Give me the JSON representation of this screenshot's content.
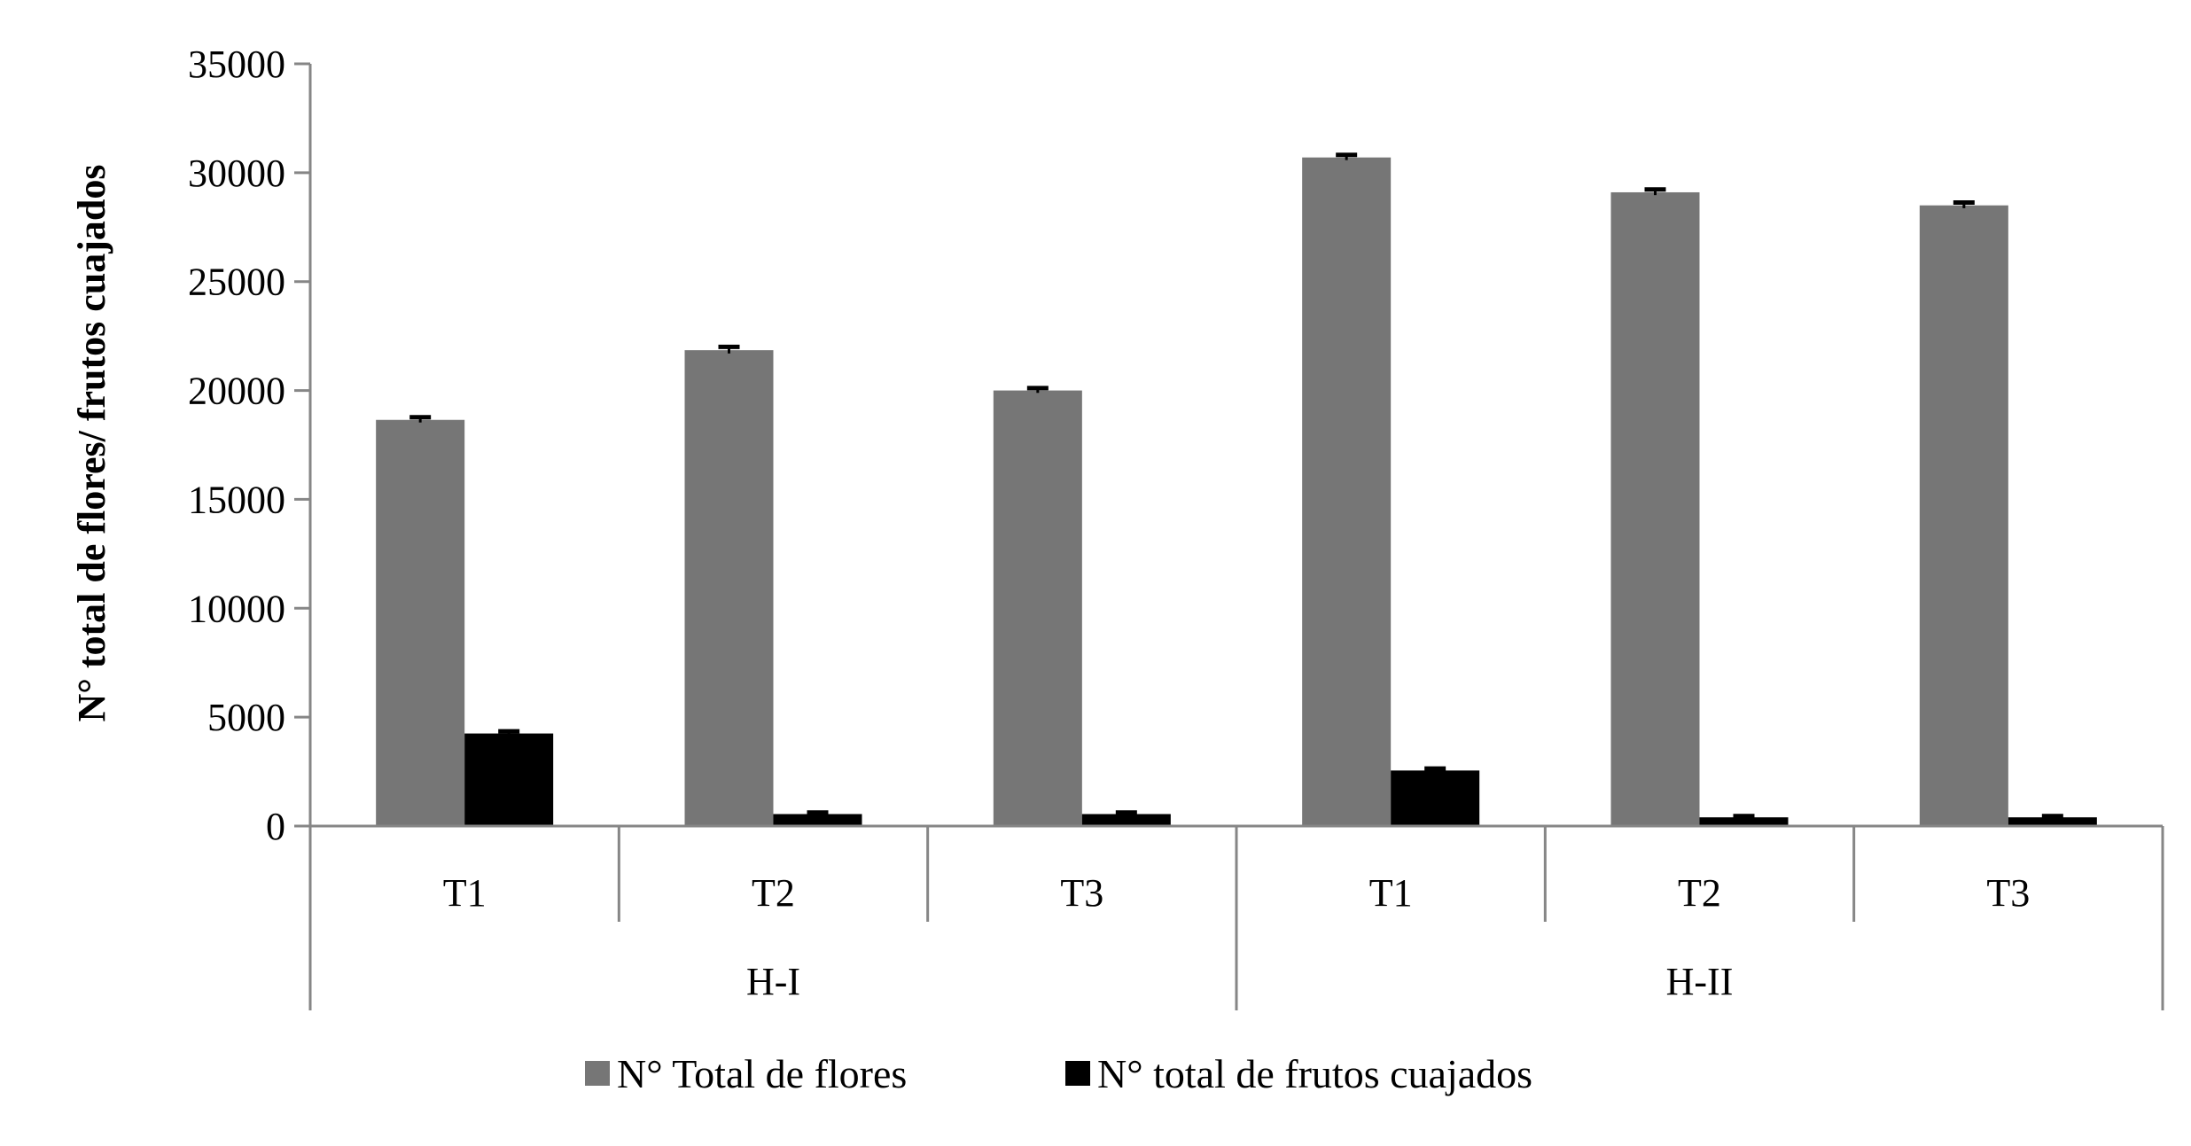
{
  "chart_data": {
    "type": "bar",
    "title": "",
    "ylabel": "N° total de flores/ frutos cuajados",
    "xlabel": "",
    "ylim": [
      0,
      35000
    ],
    "yticks": [
      0,
      5000,
      10000,
      15000,
      20000,
      25000,
      30000,
      35000
    ],
    "grid": false,
    "legend_position": "bottom",
    "groups": [
      {
        "label": "H-I",
        "categories": [
          "T1",
          "T2",
          "T3"
        ]
      },
      {
        "label": "H-II",
        "categories": [
          "T1",
          "T2",
          "T3"
        ]
      }
    ],
    "categories": [
      "T1",
      "T2",
      "T3",
      "T1",
      "T2",
      "T3"
    ],
    "series": [
      {
        "name": "N° Total de flores",
        "color": "#767676",
        "values": [
          18650,
          21850,
          20000,
          30700,
          29100,
          28500
        ],
        "errors": [
          120,
          150,
          110,
          120,
          130,
          130
        ]
      },
      {
        "name": "N° total de frutos cuajados",
        "color": "#000000",
        "values": [
          4250,
          550,
          550,
          2550,
          400,
          400
        ],
        "errors": [
          100,
          70,
          70,
          90,
          60,
          60
        ]
      }
    ]
  }
}
